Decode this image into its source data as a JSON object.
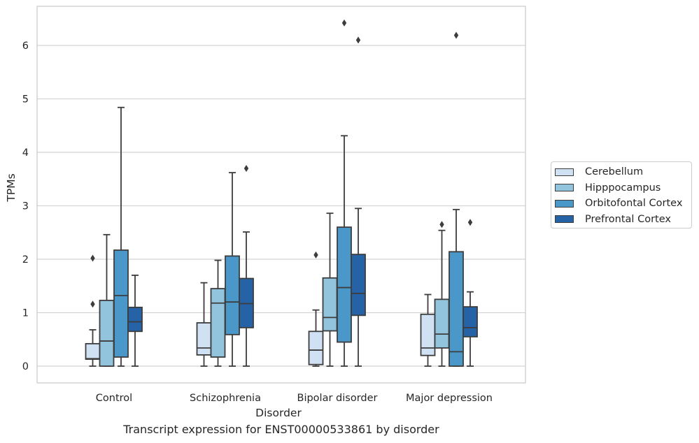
{
  "chart_data": {
    "type": "box",
    "xlabel": "Disorder",
    "ylabel": "TPMs",
    "caption": "Transcript expression for ENST00000533861 by disorder",
    "categories": [
      "Control",
      "Schizophrenia",
      "Bipolar disorder",
      "Major depression"
    ],
    "y_ticks": [
      0,
      1,
      2,
      3,
      4,
      5,
      6
    ],
    "ylim": [
      -0.3,
      6.75
    ],
    "grid": "horizontal",
    "legend_position": "right",
    "series": [
      {
        "name": "Cerebellum",
        "color": "#cfe1f2",
        "boxes": [
          {
            "category": "Control",
            "whisker_low": 0,
            "q1": 0.13,
            "median": 0.14,
            "q3": 0.42,
            "whisker_high": 0.68,
            "outliers": [
              1.16,
              2.02
            ]
          },
          {
            "category": "Schizophrenia",
            "whisker_low": 0,
            "q1": 0.21,
            "median": 0.34,
            "q3": 0.81,
            "whisker_high": 1.56,
            "outliers": []
          },
          {
            "category": "Bipolar disorder",
            "whisker_low": 0,
            "q1": 0.03,
            "median": 0.3,
            "q3": 0.65,
            "whisker_high": 1.05,
            "outliers": [
              2.08
            ]
          },
          {
            "category": "Major depression",
            "whisker_low": 0,
            "q1": 0.2,
            "median": 0.34,
            "q3": 0.97,
            "whisker_high": 1.34,
            "outliers": []
          }
        ]
      },
      {
        "name": "Hipppocampus",
        "color": "#93c4de",
        "boxes": [
          {
            "category": "Control",
            "whisker_low": 0,
            "q1": 0.0,
            "median": 0.47,
            "q3": 1.23,
            "whisker_high": 2.46,
            "outliers": []
          },
          {
            "category": "Schizophrenia",
            "whisker_low": 0,
            "q1": 0.17,
            "median": 1.18,
            "q3": 1.45,
            "whisker_high": 1.98,
            "outliers": []
          },
          {
            "category": "Bipolar disorder",
            "whisker_low": 0,
            "q1": 0.66,
            "median": 0.91,
            "q3": 1.65,
            "whisker_high": 2.86,
            "outliers": []
          },
          {
            "category": "Major depression",
            "whisker_low": 0,
            "q1": 0.34,
            "median": 0.6,
            "q3": 1.25,
            "whisker_high": 2.54,
            "outliers": [
              2.65
            ]
          }
        ]
      },
      {
        "name": "Orbitofontal Cortex",
        "color": "#4a98c9",
        "boxes": [
          {
            "category": "Control",
            "whisker_low": 0,
            "q1": 0.17,
            "median": 1.32,
            "q3": 2.17,
            "whisker_high": 4.84,
            "outliers": []
          },
          {
            "category": "Schizophrenia",
            "whisker_low": 0,
            "q1": 0.59,
            "median": 1.2,
            "q3": 2.06,
            "whisker_high": 3.62,
            "outliers": []
          },
          {
            "category": "Bipolar disorder",
            "whisker_low": 0,
            "q1": 0.45,
            "median": 1.47,
            "q3": 2.6,
            "whisker_high": 4.31,
            "outliers": [
              6.42
            ]
          },
          {
            "category": "Major depression",
            "whisker_low": 0,
            "q1": 0.0,
            "median": 0.27,
            "q3": 2.14,
            "whisker_high": 2.93,
            "outliers": [
              6.19
            ]
          }
        ]
      },
      {
        "name": "Prefrontal Cortex",
        "color": "#2563a6",
        "boxes": [
          {
            "category": "Control",
            "whisker_low": 0,
            "q1": 0.65,
            "median": 0.83,
            "q3": 1.1,
            "whisker_high": 1.7,
            "outliers": []
          },
          {
            "category": "Schizophrenia",
            "whisker_low": 0,
            "q1": 0.72,
            "median": 1.17,
            "q3": 1.64,
            "whisker_high": 2.51,
            "outliers": [
              3.7
            ]
          },
          {
            "category": "Bipolar disorder",
            "whisker_low": 0,
            "q1": 0.95,
            "median": 1.36,
            "q3": 2.09,
            "whisker_high": 2.95,
            "outliers": [
              6.1
            ]
          },
          {
            "category": "Major depression",
            "whisker_low": 0,
            "q1": 0.55,
            "median": 0.72,
            "q3": 1.11,
            "whisker_high": 1.39,
            "outliers": [
              2.69
            ]
          }
        ]
      }
    ]
  }
}
